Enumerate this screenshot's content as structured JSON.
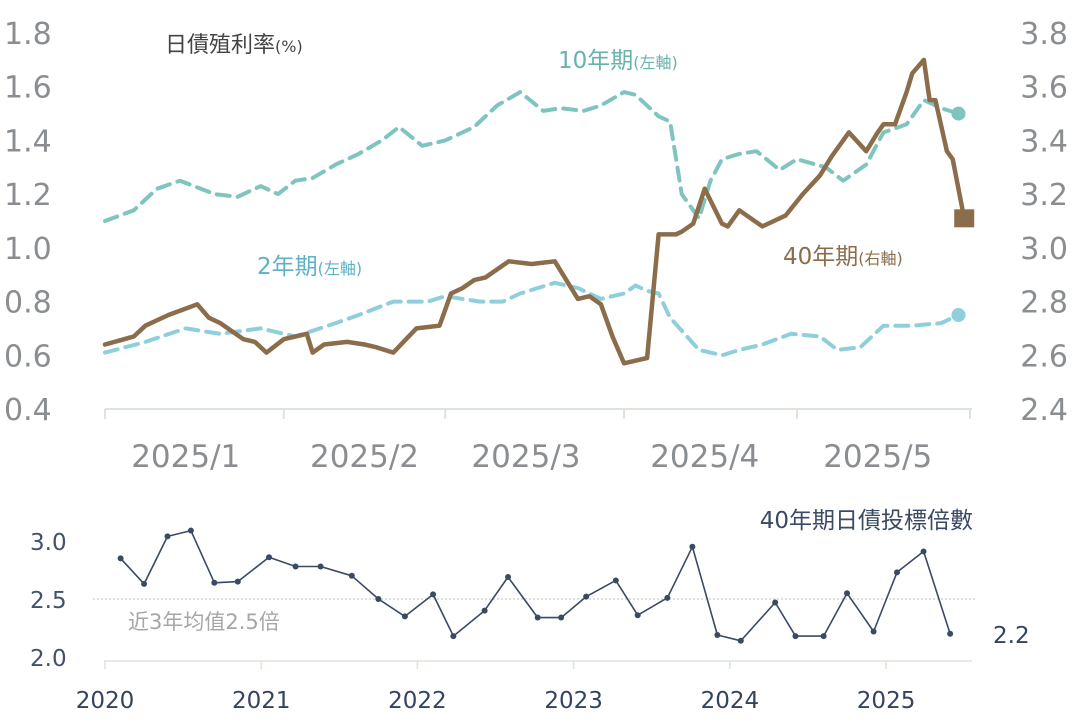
{
  "top_chart": {
    "title": "日債殖利率",
    "title_unit": "(%)",
    "left_axis_ticks": [
      "1.8",
      "1.6",
      "1.4",
      "1.2",
      "1.0",
      "0.8",
      "0.6",
      "0.4"
    ],
    "right_axis_ticks": [
      "3.8",
      "3.6",
      "3.4",
      "3.2",
      "3.0",
      "2.8",
      "2.6",
      "2.4"
    ],
    "x_ticks": [
      "2025/1",
      "2025/2",
      "2025/3",
      "2025/4",
      "2025/5"
    ],
    "series_labels": {
      "y10": {
        "main": "10年期",
        "axis": "(左軸)"
      },
      "y2": {
        "main": "2年期",
        "axis": "(左軸)"
      },
      "y40": {
        "main": "40年期",
        "axis": "(右軸)"
      }
    }
  },
  "bottom_chart": {
    "title": "40年期日債投標倍數",
    "y_ticks": [
      "3.0",
      "2.5",
      "2.0"
    ],
    "x_ticks": [
      "2020",
      "2021",
      "2022",
      "2023",
      "2024",
      "2025"
    ],
    "average_label": "近3年均值2.5倍",
    "last_value_label": "2.2"
  },
  "colors": {
    "y10": "#7fc4be",
    "y2": "#8fcfdc",
    "y40": "#8b6d4b",
    "bid": "#3a4a63",
    "axis_text": "#8a8e91",
    "avg_line": "#bfbfbf"
  },
  "chart_data": [
    {
      "type": "line",
      "title": "日債殖利率(%)",
      "x_range": [
        "2025-01-01",
        "2025-05-31"
      ],
      "x_ticks": [
        "2025/1",
        "2025/2",
        "2025/3",
        "2025/4",
        "2025/5"
      ],
      "y_left_range": [
        0.4,
        1.8
      ],
      "y_right_range": [
        2.4,
        3.8
      ],
      "grid": false,
      "series": [
        {
          "name": "10年期(左軸)",
          "axis": "left",
          "style": "dashed",
          "x": [
            "2025-01-01",
            "2025-01-06",
            "2025-01-10",
            "2025-01-14",
            "2025-01-20",
            "2025-01-24",
            "2025-01-28",
            "2025-01-31",
            "2025-02-03",
            "2025-02-06",
            "2025-02-10",
            "2025-02-14",
            "2025-02-18",
            "2025-02-21",
            "2025-02-25",
            "2025-03-01",
            "2025-03-06",
            "2025-03-10",
            "2025-03-14",
            "2025-03-18",
            "2025-03-21",
            "2025-03-25",
            "2025-03-28",
            "2025-04-01",
            "2025-04-03",
            "2025-04-07",
            "2025-04-09",
            "2025-04-11",
            "2025-04-14",
            "2025-04-16",
            "2025-04-18",
            "2025-04-21",
            "2025-04-24",
            "2025-04-28",
            "2025-05-01",
            "2025-05-06",
            "2025-05-09",
            "2025-05-13",
            "2025-05-16",
            "2025-05-20",
            "2025-05-23",
            "2025-05-26",
            "2025-05-29"
          ],
          "y": [
            1.1,
            1.14,
            1.22,
            1.25,
            1.2,
            1.19,
            1.23,
            1.2,
            1.25,
            1.26,
            1.31,
            1.35,
            1.4,
            1.45,
            1.38,
            1.4,
            1.45,
            1.53,
            1.58,
            1.51,
            1.52,
            1.51,
            1.53,
            1.58,
            1.57,
            1.49,
            1.47,
            1.2,
            1.11,
            1.25,
            1.33,
            1.35,
            1.36,
            1.29,
            1.33,
            1.3,
            1.25,
            1.31,
            1.43,
            1.46,
            1.55,
            1.52,
            1.5
          ]
        },
        {
          "name": "2年期(左軸)",
          "axis": "left",
          "style": "dashed",
          "x": [
            "2025-01-01",
            "2025-01-08",
            "2025-01-15",
            "2025-01-21",
            "2025-01-28",
            "2025-02-03",
            "2025-02-10",
            "2025-02-14",
            "2025-02-20",
            "2025-02-26",
            "2025-03-01",
            "2025-03-07",
            "2025-03-11",
            "2025-03-14",
            "2025-03-17",
            "2025-03-20",
            "2025-03-24",
            "2025-03-28",
            "2025-04-01",
            "2025-04-03",
            "2025-04-05",
            "2025-04-07",
            "2025-04-09",
            "2025-04-14",
            "2025-04-18",
            "2025-04-21",
            "2025-04-25",
            "2025-04-30",
            "2025-05-05",
            "2025-05-08",
            "2025-05-12",
            "2025-05-16",
            "2025-05-21",
            "2025-05-26",
            "2025-05-29"
          ],
          "y": [
            0.61,
            0.65,
            0.7,
            0.68,
            0.7,
            0.67,
            0.72,
            0.75,
            0.8,
            0.8,
            0.82,
            0.8,
            0.8,
            0.83,
            0.85,
            0.87,
            0.85,
            0.81,
            0.83,
            0.86,
            0.84,
            0.83,
            0.74,
            0.62,
            0.6,
            0.62,
            0.64,
            0.68,
            0.67,
            0.62,
            0.63,
            0.71,
            0.71,
            0.72,
            0.75
          ]
        },
        {
          "name": "40年期(右軸)",
          "axis": "right",
          "style": "solid",
          "x": [
            "2025-01-01",
            "2025-01-06",
            "2025-01-08",
            "2025-01-12",
            "2025-01-17",
            "2025-01-19",
            "2025-01-21",
            "2025-01-25",
            "2025-01-27",
            "2025-01-29",
            "2025-02-01",
            "2025-02-03",
            "2025-02-05",
            "2025-02-06",
            "2025-02-08",
            "2025-02-12",
            "2025-02-15",
            "2025-02-17",
            "2025-02-20",
            "2025-02-24",
            "2025-02-28",
            "2025-03-02",
            "2025-03-04",
            "2025-03-06",
            "2025-03-08",
            "2025-03-12",
            "2025-03-16",
            "2025-03-20",
            "2025-03-24",
            "2025-03-26",
            "2025-03-28",
            "2025-03-30",
            "2025-04-01",
            "2025-04-03",
            "2025-04-05",
            "2025-04-07",
            "2025-04-10",
            "2025-04-11",
            "2025-04-13",
            "2025-04-15",
            "2025-04-18",
            "2025-04-19",
            "2025-04-21",
            "2025-04-25",
            "2025-04-27",
            "2025-04-29",
            "2025-05-02",
            "2025-05-05",
            "2025-05-07",
            "2025-05-10",
            "2025-05-13",
            "2025-05-15",
            "2025-05-16",
            "2025-05-18",
            "2025-05-20",
            "2025-05-21",
            "2025-05-23",
            "2025-05-24",
            "2025-05-25",
            "2025-05-27",
            "2025-05-28",
            "2025-05-30"
          ],
          "y": [
            2.64,
            2.67,
            2.71,
            2.75,
            2.79,
            2.74,
            2.72,
            2.66,
            2.65,
            2.61,
            2.66,
            2.67,
            2.68,
            2.61,
            2.64,
            2.65,
            2.64,
            2.63,
            2.61,
            2.7,
            2.71,
            2.83,
            2.85,
            2.88,
            2.89,
            2.95,
            2.94,
            2.95,
            2.81,
            2.82,
            2.79,
            2.67,
            2.57,
            2.58,
            2.59,
            3.05,
            3.05,
            3.06,
            3.09,
            3.22,
            3.09,
            3.08,
            3.14,
            3.08,
            3.1,
            3.12,
            3.2,
            3.27,
            3.34,
            3.43,
            3.36,
            3.43,
            3.46,
            3.46,
            3.58,
            3.65,
            3.7,
            3.55,
            3.55,
            3.36,
            3.33,
            3.11
          ]
        }
      ]
    },
    {
      "type": "line",
      "title": "40年期日債投標倍數",
      "x_range": [
        2020.0,
        2025.55
      ],
      "x_ticks": [
        "2020",
        "2021",
        "2022",
        "2023",
        "2024",
        "2025"
      ],
      "ylim": [
        2.0,
        3.0
      ],
      "average": 2.5,
      "average_label": "近3年均值2.5倍",
      "grid": false,
      "series": [
        {
          "name": "",
          "x": [
            2020.1,
            2020.25,
            2020.4,
            2020.55,
            2020.7,
            2020.85,
            2021.05,
            2021.22,
            2021.38,
            2021.58,
            2021.75,
            2021.92,
            2022.1,
            2022.23,
            2022.43,
            2022.58,
            2022.77,
            2022.92,
            2023.08,
            2023.27,
            2023.41,
            2023.6,
            2023.76,
            2023.92,
            2024.07,
            2024.29,
            2024.42,
            2024.6,
            2024.75,
            2024.92,
            2025.07,
            2025.24,
            2025.41
          ],
          "y": [
            2.85,
            2.63,
            3.04,
            3.09,
            2.64,
            2.65,
            2.86,
            2.78,
            2.78,
            2.7,
            2.5,
            2.35,
            2.54,
            2.18,
            2.4,
            2.69,
            2.34,
            2.34,
            2.52,
            2.66,
            2.36,
            2.51,
            2.95,
            2.19,
            2.14,
            2.47,
            2.18,
            2.18,
            2.55,
            2.22,
            2.73,
            2.91,
            2.2
          ]
        }
      ]
    }
  ]
}
